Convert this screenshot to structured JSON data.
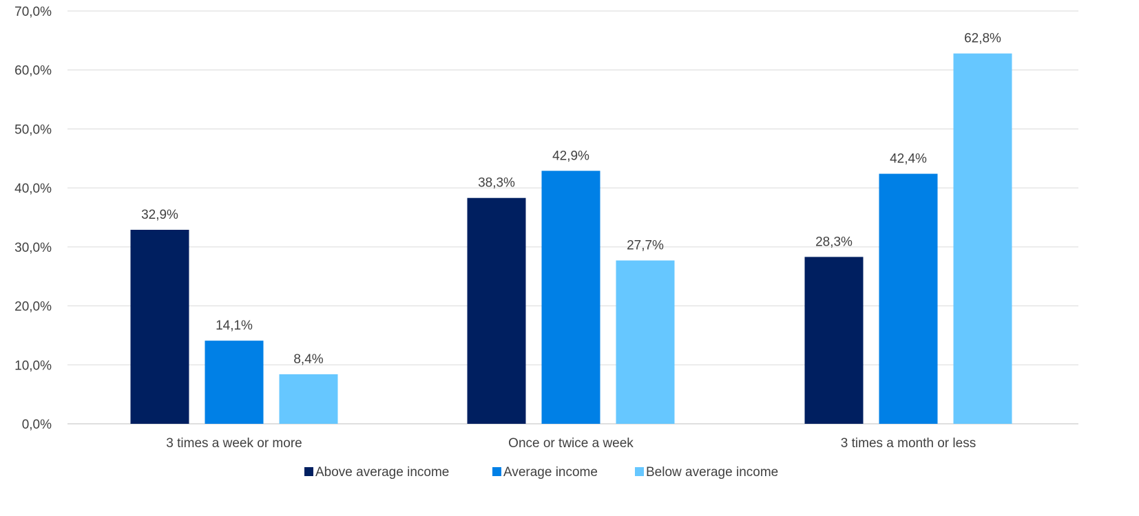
{
  "chart_data": {
    "type": "bar",
    "categories": [
      "3 times a week or more",
      "Once or twice a week",
      "3 times a month or less"
    ],
    "series": [
      {
        "name": "Above average income",
        "values": [
          32.9,
          38.3,
          28.3
        ],
        "labels": [
          "32,9%",
          "38,3%",
          "28,3%"
        ],
        "color": "#001f60"
      },
      {
        "name": "Average income",
        "values": [
          14.1,
          42.9,
          42.4
        ],
        "labels": [
          "14,1%",
          "42,9%",
          "42,4%"
        ],
        "color": "#0080e6"
      },
      {
        "name": "Below average income",
        "values": [
          8.4,
          27.7,
          62.8
        ],
        "labels": [
          "8,4%",
          "27,7%",
          "62,8%"
        ],
        "color": "#66c7ff"
      }
    ],
    "ylim": [
      0,
      70
    ],
    "yticks": [
      0,
      10,
      20,
      30,
      40,
      50,
      60,
      70
    ],
    "ytick_labels": [
      "0,0%",
      "10,0%",
      "20,0%",
      "30,0%",
      "40,0%",
      "50,0%",
      "60,0%",
      "70,0%"
    ],
    "grid": true,
    "legend_position": "bottom-center",
    "title": "",
    "xlabel": "",
    "ylabel": ""
  }
}
